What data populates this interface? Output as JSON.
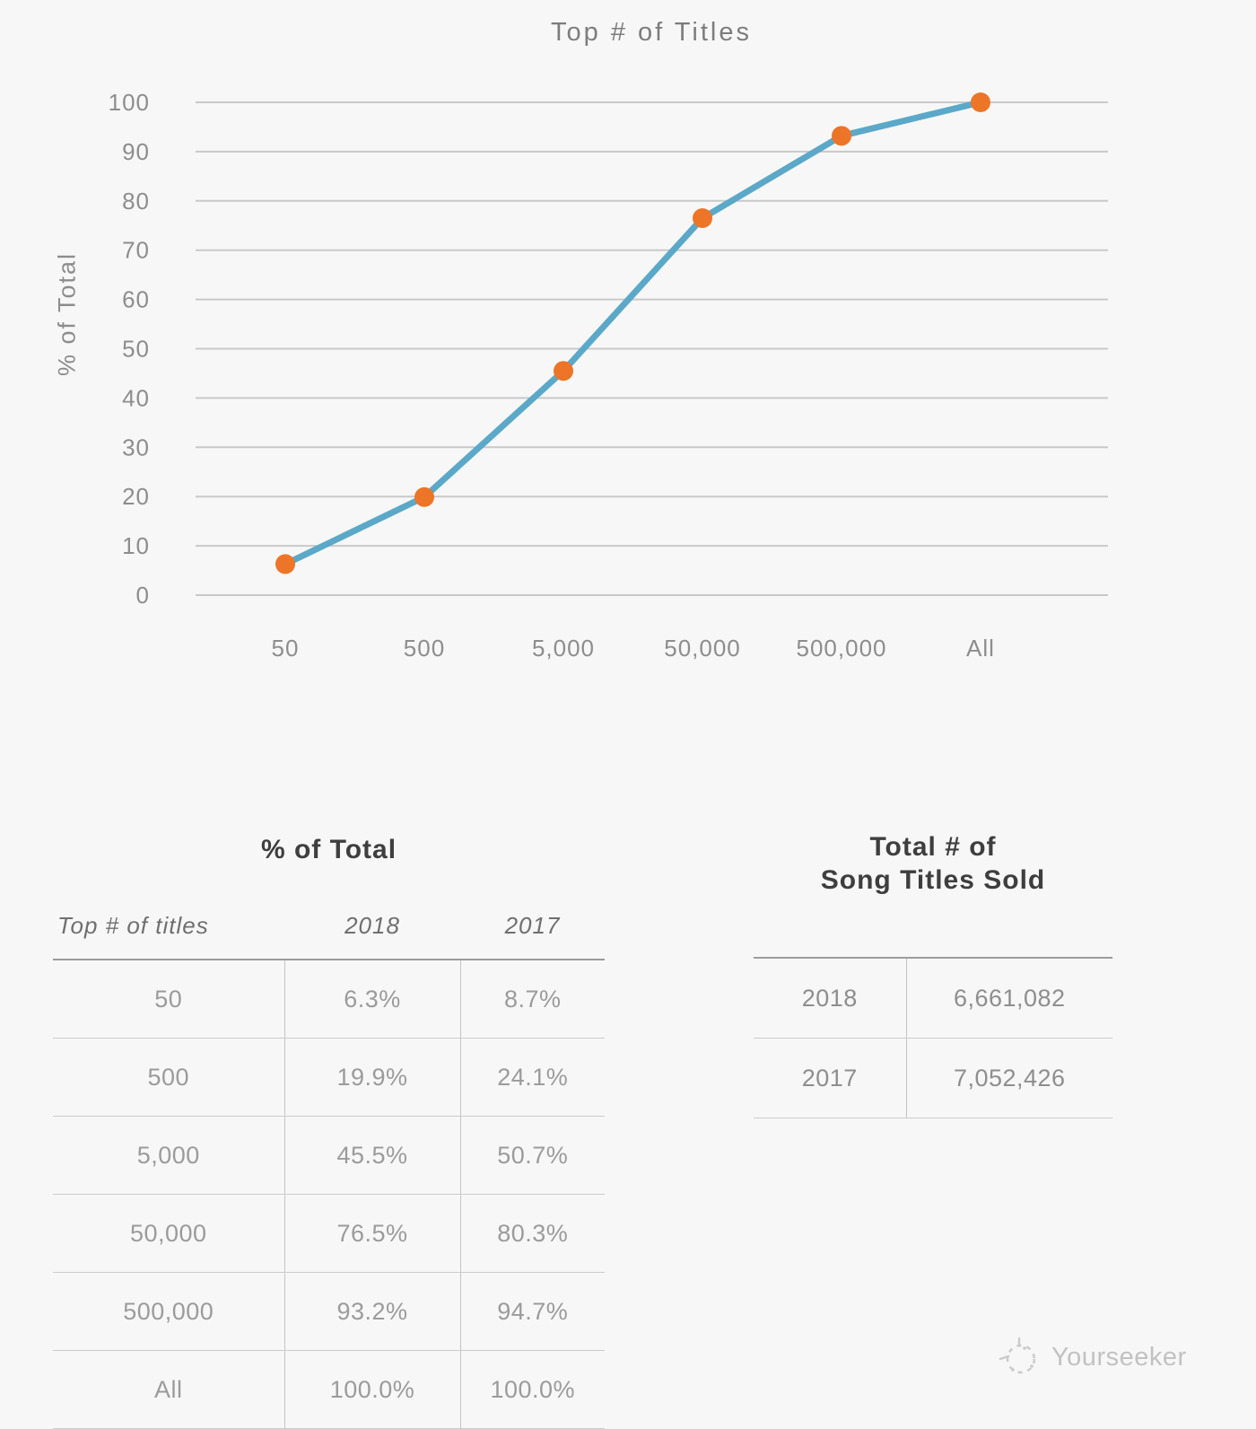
{
  "chart_data": {
    "type": "line",
    "title": "Top # of Titles",
    "xlabel": "",
    "ylabel": "% of Total",
    "categories": [
      "50",
      "500",
      "5,000",
      "50,000",
      "500,000",
      "All"
    ],
    "series": [
      {
        "name": "2018",
        "values": [
          6.3,
          19.9,
          45.5,
          76.5,
          93.2,
          100.0
        ]
      }
    ],
    "ylim": [
      0,
      100
    ],
    "ytick_step": 10,
    "grid": true,
    "legend": "none",
    "line_color": "#5BA8C8",
    "marker_color": "#ED7528"
  },
  "left_table": {
    "title": "% of Total",
    "columns": [
      "Top # of titles",
      "2018",
      "2017"
    ],
    "rows": [
      [
        "50",
        "6.3%",
        "8.7%"
      ],
      [
        "500",
        "19.9%",
        "24.1%"
      ],
      [
        "5,000",
        "45.5%",
        "50.7%"
      ],
      [
        "50,000",
        "76.5%",
        "80.3%"
      ],
      [
        "500,000",
        "93.2%",
        "94.7%"
      ],
      [
        "All",
        "100.0%",
        "100.0%"
      ]
    ]
  },
  "right_table": {
    "title_line1": "Total # of",
    "title_line2": "Song Titles Sold",
    "rows": [
      [
        "2018",
        "6,661,082"
      ],
      [
        "2017",
        "7,052,426"
      ]
    ]
  },
  "watermark": {
    "label": "Yourseeker"
  }
}
